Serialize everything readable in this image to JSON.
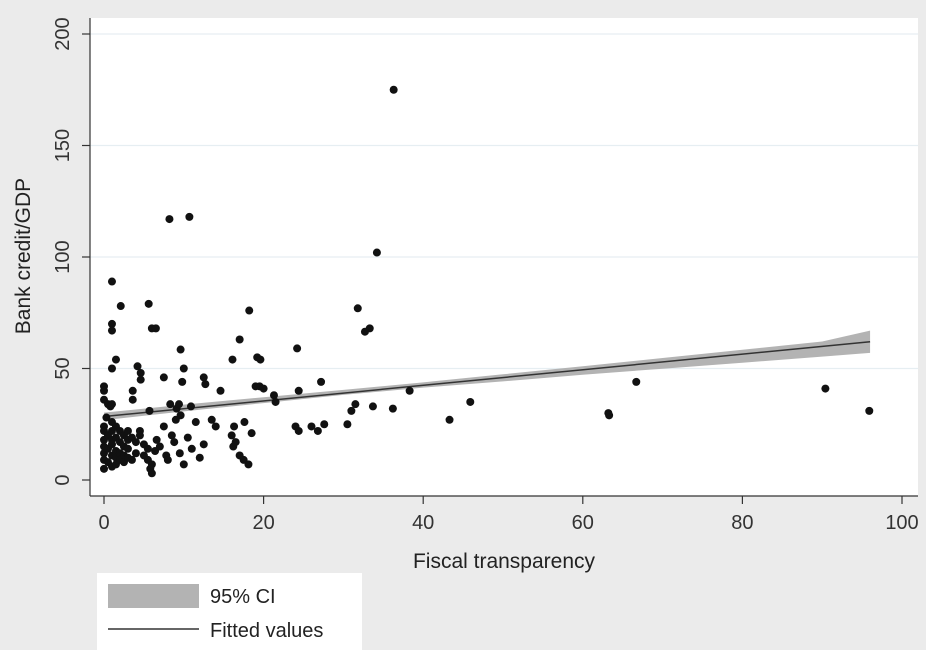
{
  "chart_data": {
    "type": "scatter",
    "title": "",
    "xlabel": "Fiscal transparency",
    "ylabel": "Bank credit/GDP",
    "xlim": [
      0,
      100
    ],
    "ylim": [
      0,
      200
    ],
    "xticks": [
      0,
      20,
      40,
      60,
      80,
      100
    ],
    "yticks": [
      0,
      50,
      100,
      150,
      200
    ],
    "grid": "horizontal",
    "legend": {
      "placement": "bottom-left",
      "entries": [
        {
          "label": "95% CI",
          "kind": "band",
          "color": "#b3b3b3"
        },
        {
          "label": "Fitted values",
          "kind": "line",
          "color": "#333333"
        }
      ]
    },
    "fit": {
      "x": [
        0,
        96
      ],
      "y": [
        28.5,
        62
      ]
    },
    "ci": {
      "x": [
        0,
        10,
        20,
        30,
        40,
        50,
        60,
        70,
        80,
        90,
        96
      ],
      "lower": [
        26.8,
        30.8,
        34.5,
        38.2,
        41.4,
        44.2,
        47.2,
        49.9,
        52.6,
        55.3,
        57.0
      ],
      "upper": [
        30.2,
        33.8,
        37.1,
        40.4,
        43.8,
        47.4,
        51.0,
        54.7,
        58.4,
        62.1,
        67.0
      ]
    },
    "points": [
      [
        36.3,
        175
      ],
      [
        34.2,
        102
      ],
      [
        8.2,
        117
      ],
      [
        10.7,
        118
      ],
      [
        31.8,
        77
      ],
      [
        33.3,
        68
      ],
      [
        32.7,
        66.5
      ],
      [
        1.0,
        89
      ],
      [
        2.1,
        78
      ],
      [
        5.6,
        79
      ],
      [
        1.0,
        70
      ],
      [
        1.0,
        67
      ],
      [
        6.0,
        68
      ],
      [
        6.5,
        68
      ],
      [
        18.2,
        76
      ],
      [
        17.0,
        63
      ],
      [
        24.2,
        59
      ],
      [
        9.6,
        58.5
      ],
      [
        16.1,
        54
      ],
      [
        19.2,
        55
      ],
      [
        19.6,
        54
      ],
      [
        1.5,
        54
      ],
      [
        1.0,
        50
      ],
      [
        4.2,
        51
      ],
      [
        4.6,
        48
      ],
      [
        4.6,
        45
      ],
      [
        7.5,
        46
      ],
      [
        10.0,
        50
      ],
      [
        12.5,
        46
      ],
      [
        12.7,
        43
      ],
      [
        9.8,
        44
      ],
      [
        14.6,
        40
      ],
      [
        19.5,
        42
      ],
      [
        20.0,
        41
      ],
      [
        19.0,
        42
      ],
      [
        21.3,
        38
      ],
      [
        21.5,
        35
      ],
      [
        24.4,
        40
      ],
      [
        27.2,
        44
      ],
      [
        38.3,
        40
      ],
      [
        3.6,
        40
      ],
      [
        3.6,
        36
      ],
      [
        0.0,
        42
      ],
      [
        0.0,
        40
      ],
      [
        0.0,
        36
      ],
      [
        0.5,
        34
      ],
      [
        0.8,
        33
      ],
      [
        1.0,
        34
      ],
      [
        5.7,
        31
      ],
      [
        8.3,
        34
      ],
      [
        9.1,
        32
      ],
      [
        9.6,
        29
      ],
      [
        9.4,
        34
      ],
      [
        10.9,
        33
      ],
      [
        16.3,
        24
      ],
      [
        17.6,
        26
      ],
      [
        24.0,
        24
      ],
      [
        24.4,
        22
      ],
      [
        26.0,
        24
      ],
      [
        26.8,
        22
      ],
      [
        27.6,
        25
      ],
      [
        30.5,
        25
      ],
      [
        31.0,
        31
      ],
      [
        31.5,
        34
      ],
      [
        33.7,
        33
      ],
      [
        36.2,
        32
      ],
      [
        43.3,
        27
      ],
      [
        45.9,
        35
      ],
      [
        63.2,
        30
      ],
      [
        63.3,
        29
      ],
      [
        66.7,
        44
      ],
      [
        90.4,
        41
      ],
      [
        95.9,
        31
      ],
      [
        0.0,
        24
      ],
      [
        0.0,
        22
      ],
      [
        0.0,
        18
      ],
      [
        0.0,
        15
      ],
      [
        0.0,
        12
      ],
      [
        0.0,
        9
      ],
      [
        0.0,
        5
      ],
      [
        0.3,
        28
      ],
      [
        0.5,
        20
      ],
      [
        0.5,
        14
      ],
      [
        0.5,
        8
      ],
      [
        1.0,
        26
      ],
      [
        1.0,
        22
      ],
      [
        1.0,
        18
      ],
      [
        1.0,
        16
      ],
      [
        1.0,
        11
      ],
      [
        1.0,
        6
      ],
      [
        1.5,
        24
      ],
      [
        1.5,
        19
      ],
      [
        1.5,
        13
      ],
      [
        1.5,
        10
      ],
      [
        1.5,
        7
      ],
      [
        2.0,
        22
      ],
      [
        2.0,
        17
      ],
      [
        2.0,
        12
      ],
      [
        2.0,
        9
      ],
      [
        2.5,
        20
      ],
      [
        2.5,
        15
      ],
      [
        2.5,
        11
      ],
      [
        2.5,
        8
      ],
      [
        3.0,
        22
      ],
      [
        3.0,
        18
      ],
      [
        3.0,
        14
      ],
      [
        3.0,
        10
      ],
      [
        3.5,
        19
      ],
      [
        3.5,
        9
      ],
      [
        4.0,
        17
      ],
      [
        4.0,
        12
      ],
      [
        4.5,
        22
      ],
      [
        4.5,
        20
      ],
      [
        5.0,
        16
      ],
      [
        5.0,
        11
      ],
      [
        5.5,
        14
      ],
      [
        5.5,
        9
      ],
      [
        5.8,
        5
      ],
      [
        6.0,
        3
      ],
      [
        6.0,
        7
      ],
      [
        6.4,
        13
      ],
      [
        6.6,
        18
      ],
      [
        7.0,
        15
      ],
      [
        7.5,
        24
      ],
      [
        7.8,
        11
      ],
      [
        8.0,
        9
      ],
      [
        8.5,
        20
      ],
      [
        8.8,
        17
      ],
      [
        9.0,
        27
      ],
      [
        9.5,
        12
      ],
      [
        10.0,
        7
      ],
      [
        10.5,
        19
      ],
      [
        11.0,
        14
      ],
      [
        11.5,
        26
      ],
      [
        12.0,
        10
      ],
      [
        12.5,
        16
      ],
      [
        13.5,
        27
      ],
      [
        14.0,
        24
      ],
      [
        16.0,
        20
      ],
      [
        16.2,
        15
      ],
      [
        16.5,
        17
      ],
      [
        17.0,
        11
      ],
      [
        17.5,
        9
      ],
      [
        18.1,
        7
      ],
      [
        18.5,
        21
      ]
    ]
  }
}
